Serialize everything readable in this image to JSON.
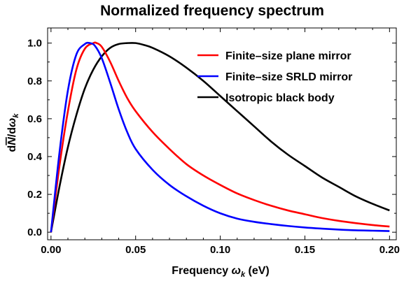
{
  "chart_data": {
    "type": "line",
    "title": "Normalized frequency spectrum",
    "xlabel": {
      "main": "Frequency ",
      "symbol": "ω",
      "sub": "k",
      "unit": " (eV)"
    },
    "ylabel": {
      "prefix": "d",
      "symbol": "N",
      "mid": "/d",
      "symbol2": "ω",
      "sub": "k"
    },
    "xlim": [
      -0.002,
      0.204
    ],
    "ylim": [
      -0.04,
      1.08
    ],
    "xticks": [
      0.0,
      0.05,
      0.1,
      0.15,
      0.2
    ],
    "xtick_labels": [
      "0.00",
      "0.05",
      "0.10",
      "0.15",
      "0.20"
    ],
    "yticks": [
      0.0,
      0.2,
      0.4,
      0.6,
      0.8,
      1.0
    ],
    "ytick_labels": [
      "0.0",
      "0.2",
      "0.4",
      "0.6",
      "0.8",
      "1.0"
    ],
    "grid": false,
    "legend_position": "top-right",
    "series": [
      {
        "name": "Finite–size plane mirror",
        "color": "#ff0000",
        "x": [
          0.0,
          0.005,
          0.01,
          0.015,
          0.02,
          0.025,
          0.027,
          0.03,
          0.035,
          0.04,
          0.045,
          0.05,
          0.06,
          0.07,
          0.08,
          0.09,
          0.1,
          0.11,
          0.12,
          0.13,
          0.14,
          0.15,
          0.16,
          0.17,
          0.18,
          0.19,
          0.2
        ],
        "y": [
          0.0,
          0.35,
          0.64,
          0.86,
          0.97,
          1.0,
          1.0,
          0.98,
          0.9,
          0.8,
          0.71,
          0.64,
          0.53,
          0.44,
          0.36,
          0.3,
          0.25,
          0.205,
          0.17,
          0.14,
          0.115,
          0.095,
          0.075,
          0.06,
          0.048,
          0.038,
          0.03
        ]
      },
      {
        "name": "Finite–size SRLD mirror",
        "color": "#0000ff",
        "x": [
          0.0,
          0.005,
          0.01,
          0.015,
          0.02,
          0.023,
          0.026,
          0.03,
          0.035,
          0.04,
          0.045,
          0.05,
          0.06,
          0.07,
          0.08,
          0.09,
          0.1,
          0.11,
          0.12,
          0.13,
          0.14,
          0.15,
          0.16,
          0.17,
          0.18,
          0.19,
          0.2
        ],
        "y": [
          0.0,
          0.42,
          0.75,
          0.94,
          0.995,
          1.0,
          0.985,
          0.92,
          0.79,
          0.65,
          0.53,
          0.44,
          0.33,
          0.25,
          0.19,
          0.14,
          0.1,
          0.072,
          0.055,
          0.043,
          0.033,
          0.025,
          0.019,
          0.014,
          0.01,
          0.008,
          0.006
        ]
      },
      {
        "name": "Isotropic black body",
        "color": "#000000",
        "x": [
          0.0,
          0.005,
          0.01,
          0.015,
          0.02,
          0.025,
          0.03,
          0.035,
          0.04,
          0.045,
          0.05,
          0.055,
          0.06,
          0.07,
          0.08,
          0.09,
          0.1,
          0.11,
          0.12,
          0.13,
          0.14,
          0.15,
          0.16,
          0.17,
          0.18,
          0.19,
          0.2
        ],
        "y": [
          0.0,
          0.24,
          0.45,
          0.62,
          0.76,
          0.86,
          0.93,
          0.975,
          0.995,
          1.0,
          1.0,
          0.99,
          0.975,
          0.93,
          0.87,
          0.8,
          0.72,
          0.64,
          0.56,
          0.48,
          0.41,
          0.35,
          0.29,
          0.24,
          0.19,
          0.15,
          0.115
        ]
      }
    ]
  }
}
